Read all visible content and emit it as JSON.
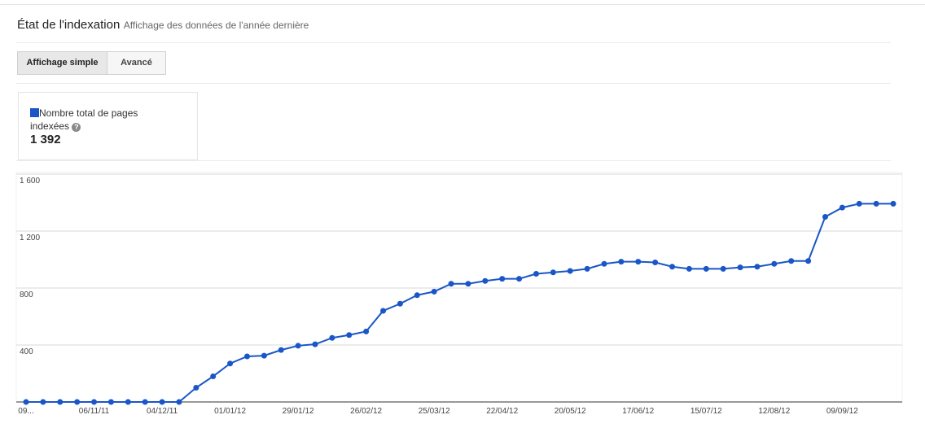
{
  "header": {
    "title": "État de l'indexation",
    "subtitle": "Affichage des données de l'année dernière"
  },
  "tabs": [
    "Affichage simple",
    "Avancé"
  ],
  "summary": {
    "total": "1 392"
  },
  "chart_data": {
    "type": "line",
    "categories": [
      "09...",
      null,
      null,
      null,
      "06/11/11",
      null,
      null,
      null,
      "04/12/11",
      null,
      null,
      null,
      "01/01/12",
      null,
      null,
      null,
      "29/01/12",
      null,
      null,
      null,
      "26/02/12",
      null,
      null,
      null,
      "25/03/12",
      null,
      null,
      null,
      "22/04/12",
      null,
      null,
      null,
      "20/05/12",
      null,
      null,
      null,
      "17/06/12",
      null,
      null,
      null,
      "15/07/12",
      null,
      null,
      null,
      "12/08/12",
      null,
      null,
      null,
      "09/09/12",
      null,
      null,
      null
    ],
    "series": [
      {
        "name": "Nombre total de pages indexées",
        "color": "#1a56c8",
        "values": [
          0,
          0,
          0,
          0,
          0,
          0,
          0,
          0,
          0,
          0,
          100,
          180,
          270,
          320,
          325,
          365,
          395,
          405,
          450,
          470,
          495,
          640,
          690,
          750,
          775,
          830,
          830,
          850,
          865,
          865,
          900,
          910,
          920,
          935,
          970,
          985,
          985,
          980,
          950,
          935,
          935,
          935,
          945,
          950,
          970,
          990,
          990,
          1300,
          1365,
          1392,
          1392,
          1392
        ]
      }
    ],
    "ylim": [
      0,
      1600
    ],
    "yticks": [
      400,
      800,
      {
        "value": 1200,
        "label": "1 200"
      },
      {
        "value": 1600,
        "label": "1 600"
      }
    ],
    "grid": true
  }
}
